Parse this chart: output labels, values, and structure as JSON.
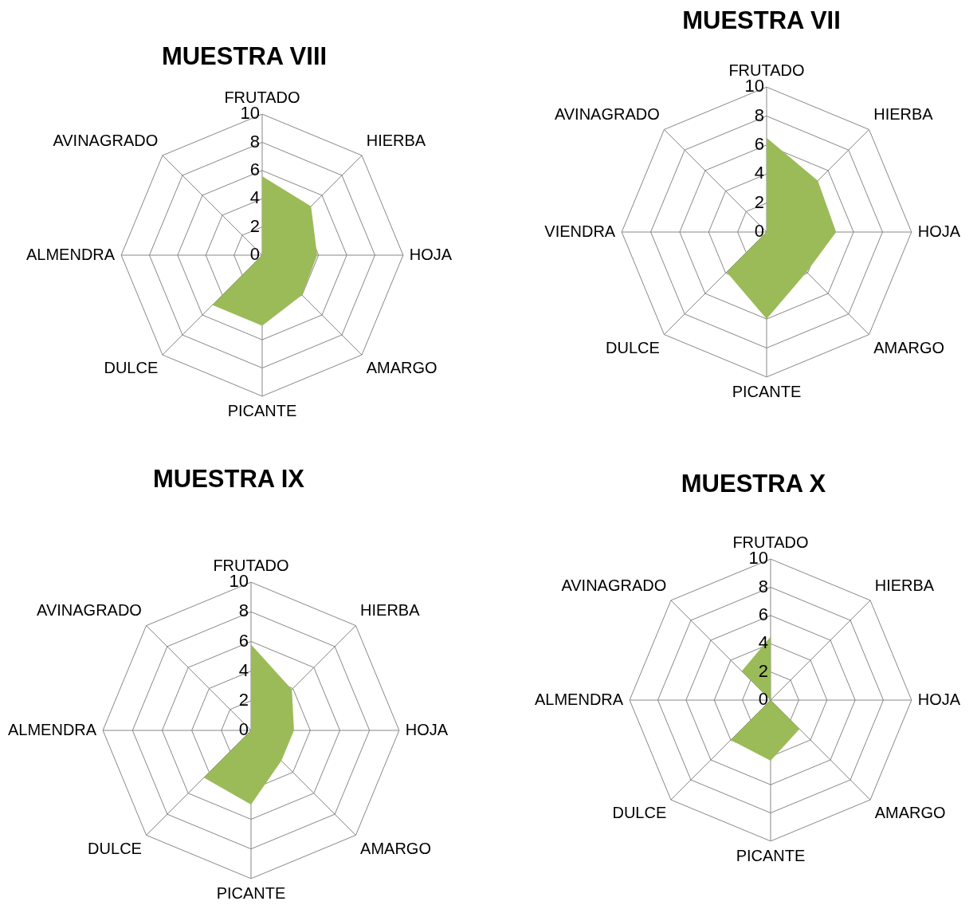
{
  "chart_data": [
    {
      "type": "radar",
      "title": "MUESTRA VIII",
      "categories": [
        "FRUTADO",
        "HIERBA",
        "HOJA",
        "AMARGO",
        "PICANTE",
        "DULCE",
        "ALMENDRA",
        "AVINAGRADO"
      ],
      "series": [
        {
          "color": "#9bbb59",
          "values": [
            5.6,
            4.9,
            3.9,
            4.0,
            5.0,
            5.0,
            0,
            0
          ]
        }
      ],
      "ylim": [
        0,
        10
      ],
      "yticks": [
        0,
        2,
        4,
        6,
        8,
        10
      ],
      "grid": true
    },
    {
      "type": "radar",
      "title": "MUESTRA VII",
      "categories": [
        "FRUTADO",
        "HIERBA",
        "HOJA",
        "AMARGO",
        "PICANTE",
        "DULCE",
        "VIENDRA",
        "AVINAGRADO"
      ],
      "series": [
        {
          "color": "#9bbb59",
          "values": [
            6.5,
            5.0,
            4.8,
            3.9,
            6.0,
            3.9,
            0,
            0
          ]
        }
      ],
      "ylim": [
        0,
        10
      ],
      "yticks": [
        0,
        2,
        4,
        6,
        8,
        10
      ],
      "grid": true
    },
    {
      "type": "radar",
      "title": "MUESTRA IX",
      "categories": [
        "FRUTADO",
        "HIERBA",
        "HOJA",
        "AMARGO",
        "PICANTE",
        "DULCE",
        "ALMENDRA",
        "AVINAGRADO"
      ],
      "series": [
        {
          "color": "#9bbb59",
          "values": [
            5.8,
            3.9,
            2.9,
            2.9,
            5.0,
            4.5,
            0,
            0
          ]
        }
      ],
      "ylim": [
        0,
        10
      ],
      "yticks": [
        0,
        2,
        4,
        6,
        8,
        10
      ],
      "grid": true
    },
    {
      "type": "radar",
      "title": "MUESTRA X",
      "categories": [
        "FRUTADO",
        "HIERBA",
        "HOJA",
        "AMARGO",
        "PICANTE",
        "DULCE",
        "ALMENDRA",
        "AVINAGRADO"
      ],
      "series": [
        {
          "color": "#9bbb59",
          "values": [
            4.5,
            0,
            0,
            2.9,
            4.3,
            4.0,
            0,
            2.9
          ]
        }
      ],
      "ylim": [
        0,
        10
      ],
      "yticks": [
        0,
        2,
        4,
        6,
        8,
        10
      ],
      "grid": true
    }
  ]
}
